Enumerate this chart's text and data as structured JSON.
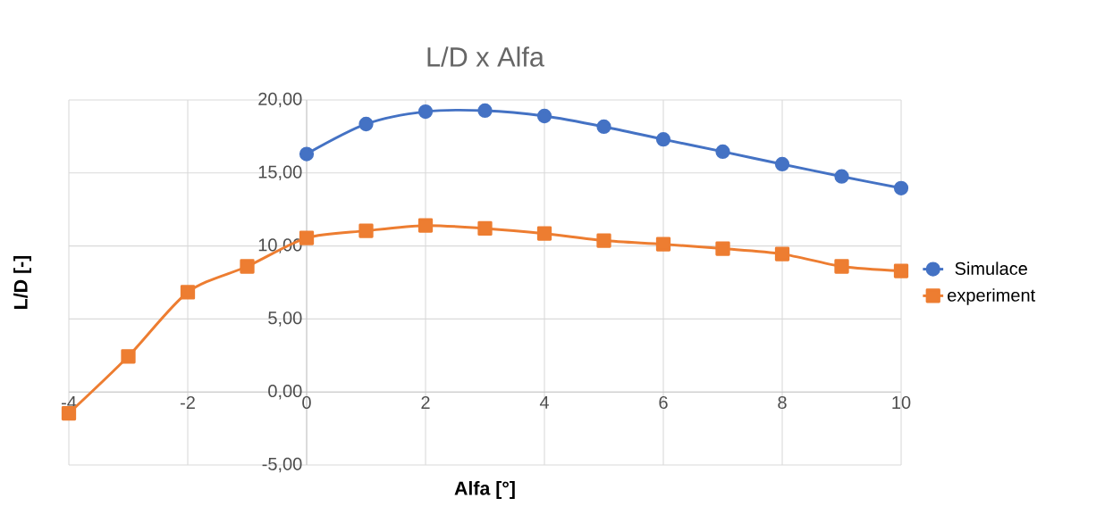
{
  "chart_data": {
    "type": "line",
    "title": "L/D x Alfa",
    "xlabel": "Alfa [°]",
    "ylabel": "L/D [-]",
    "x": [
      -4,
      -3,
      -2,
      -1,
      0,
      1,
      2,
      3,
      4,
      5,
      6,
      7,
      8,
      9,
      10
    ],
    "series": [
      {
        "name": "Simulace",
        "color": "#4472c4",
        "marker": "circle",
        "x": [
          0,
          1,
          2,
          3,
          4,
          5,
          6,
          7,
          8,
          9,
          10
        ],
        "values": [
          16.3,
          18.35,
          19.2,
          19.27,
          18.9,
          18.17,
          17.3,
          16.46,
          15.6,
          14.76,
          13.96
        ]
      },
      {
        "name": "experiment",
        "color": "#ed7d31",
        "marker": "square",
        "values": [
          -1.46,
          2.44,
          6.83,
          8.6,
          10.55,
          11.04,
          11.4,
          11.2,
          10.85,
          10.37,
          10.12,
          9.82,
          9.45,
          8.6,
          8.29
        ]
      }
    ],
    "xlim": [
      -4,
      10
    ],
    "xticks": [
      -4,
      -2,
      0,
      2,
      4,
      6,
      8,
      10
    ],
    "ylim": [
      -5,
      20
    ],
    "yticks": [
      {
        "value": -5,
        "label": "-5,00"
      },
      {
        "value": 0,
        "label": "0,00"
      },
      {
        "value": 5,
        "label": "5,00"
      },
      {
        "value": 10,
        "label": "10,00"
      },
      {
        "value": 15,
        "label": "15,00"
      },
      {
        "value": 20,
        "label": "20,00"
      }
    ],
    "grid": true,
    "legend": "right",
    "line_style": "solid"
  }
}
